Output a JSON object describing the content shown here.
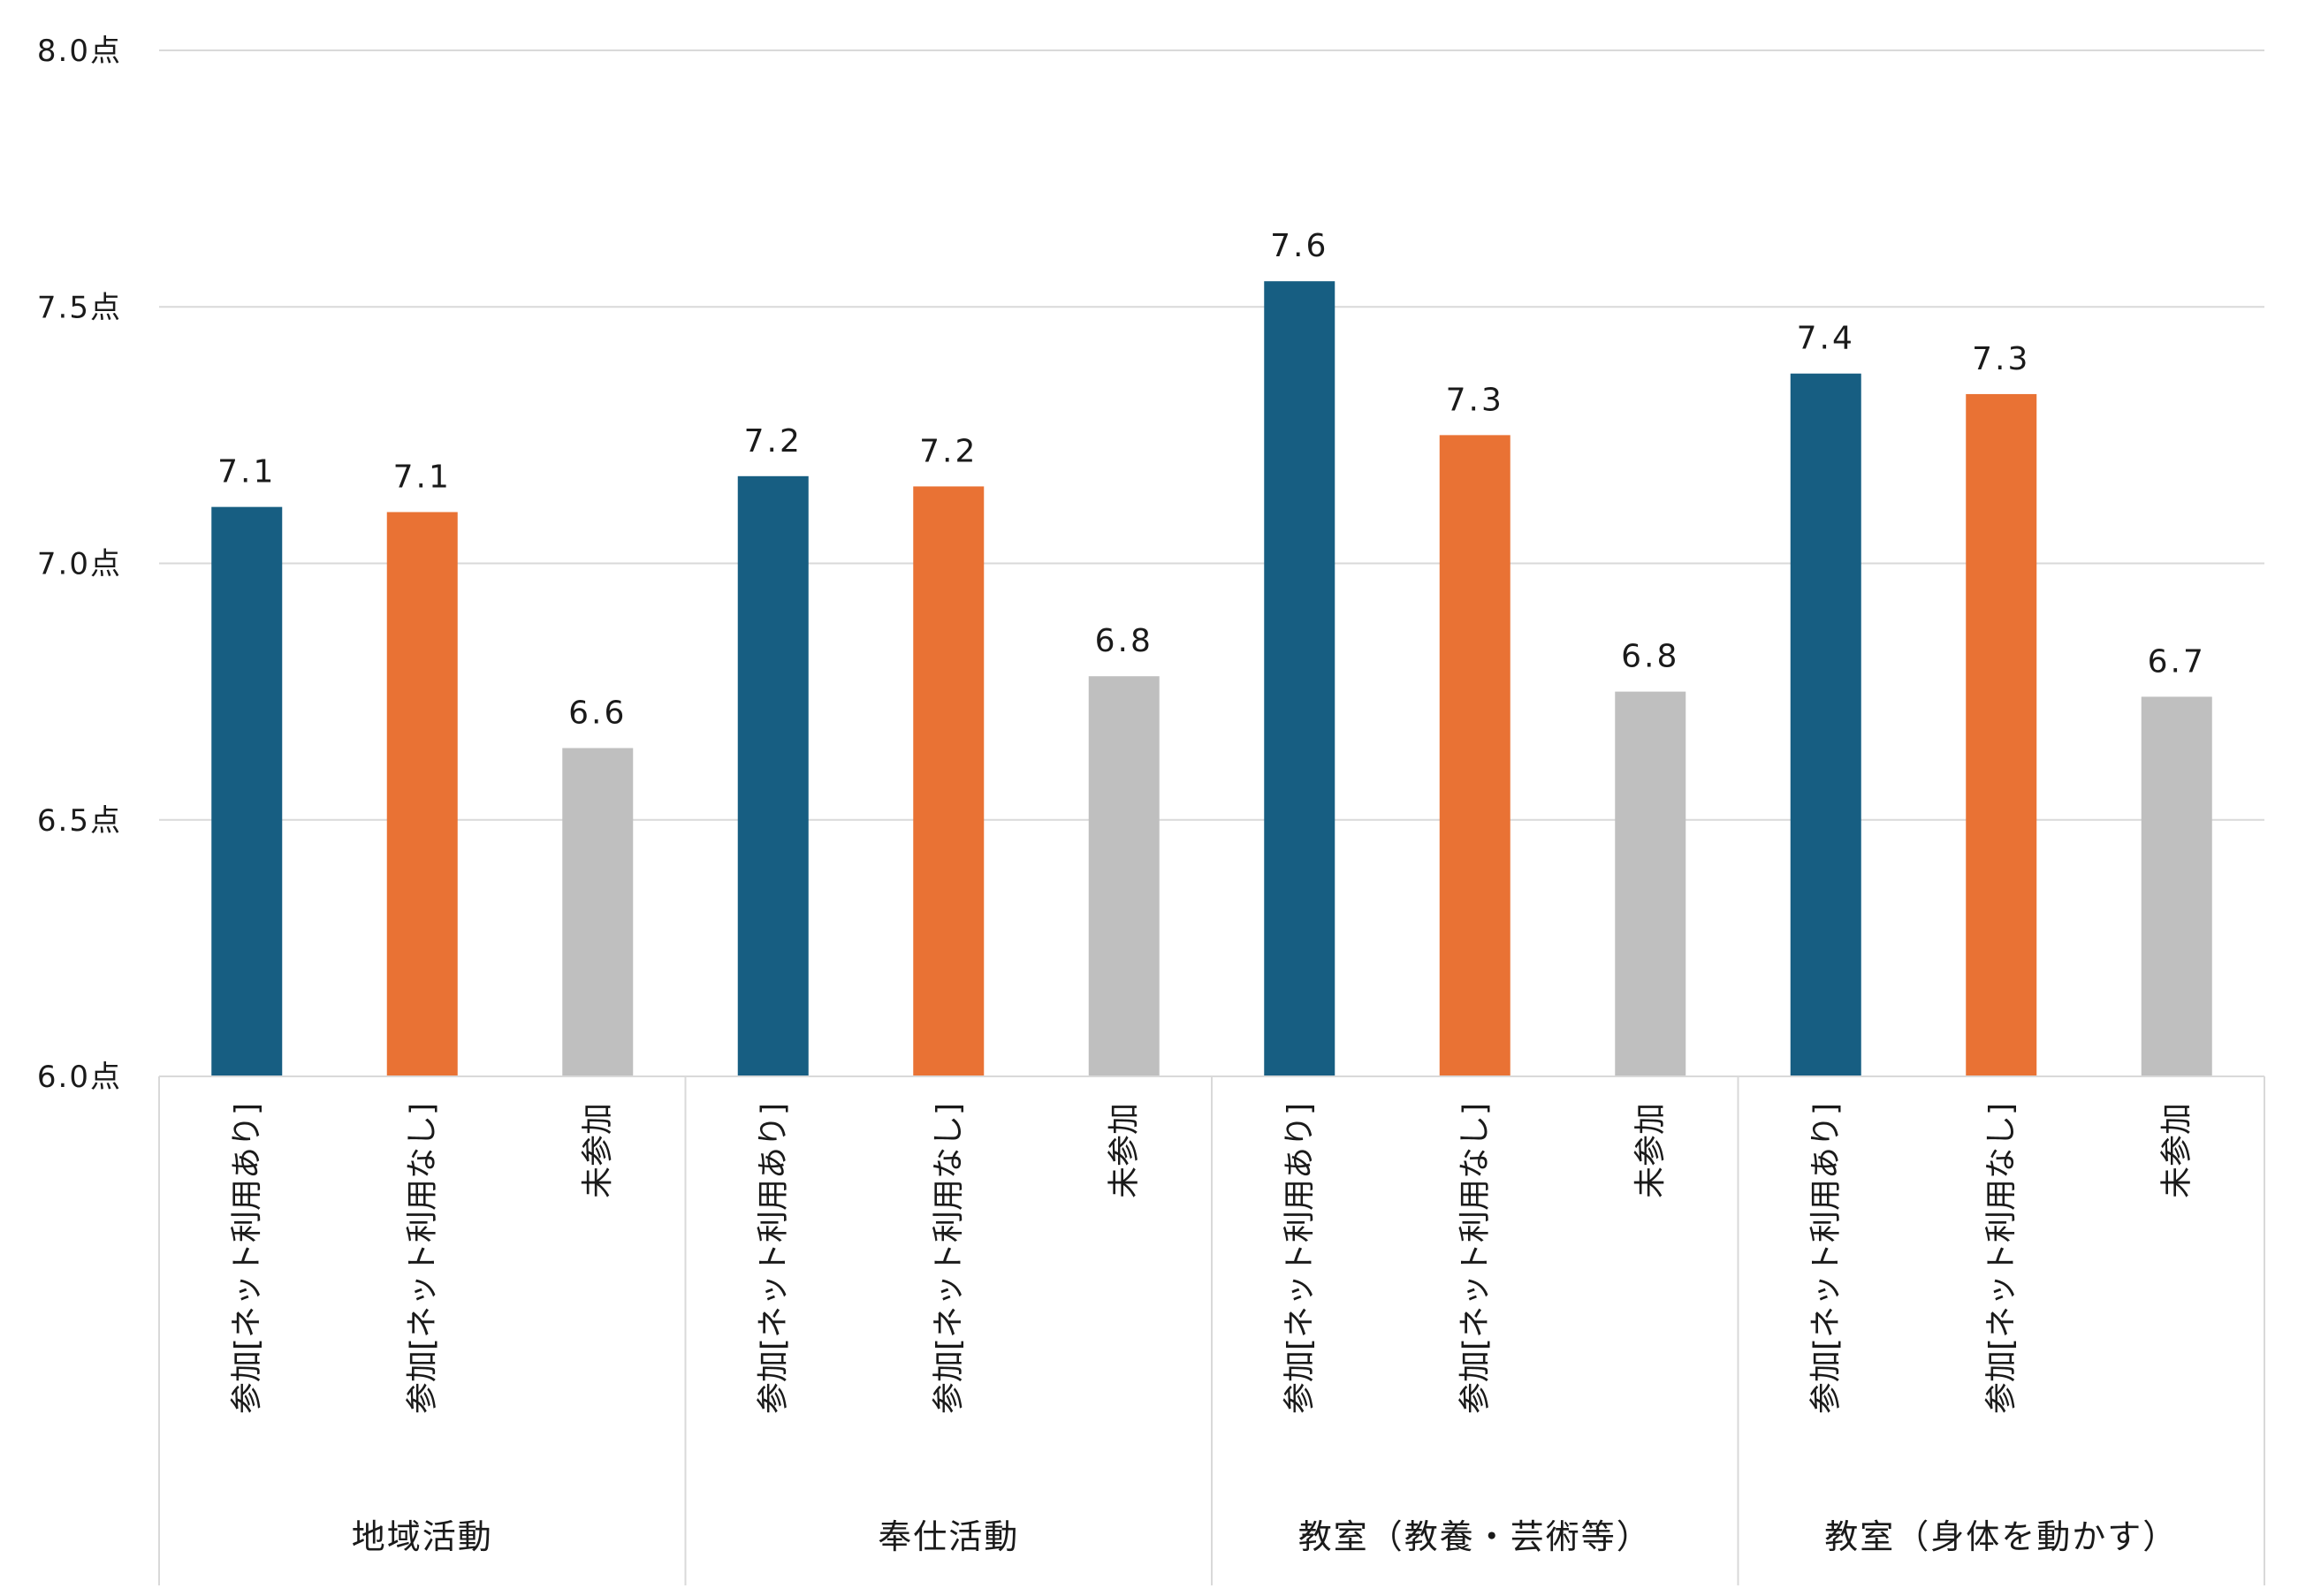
{
  "chart_data": {
    "type": "bar",
    "ylim": [
      6.0,
      8.0
    ],
    "y_ticks": [
      "6.0点",
      "6.5点",
      "7.0点",
      "7.5点",
      "8.0点"
    ],
    "y_tick_values": [
      6.0,
      6.5,
      7.0,
      7.5,
      8.0
    ],
    "grid": true,
    "colors": {
      "net_yes": "#175e82",
      "net_no": "#e97234",
      "none": "#bfbfbf"
    },
    "groups": [
      {
        "name": "地域活動",
        "bars": [
          {
            "label": "参加[ネット利用あり]",
            "value": 7.11,
            "data_label": "7.1",
            "color_key": "net_yes"
          },
          {
            "label": "参加[ネット利用なし]",
            "value": 7.1,
            "data_label": "7.1",
            "color_key": "net_no"
          },
          {
            "label": "未参加",
            "value": 6.64,
            "data_label": "6.6",
            "color_key": "none"
          }
        ]
      },
      {
        "name": "奉仕活動",
        "bars": [
          {
            "label": "参加[ネット利用あり]",
            "value": 7.17,
            "data_label": "7.2",
            "color_key": "net_yes"
          },
          {
            "label": "参加[ネット利用なし]",
            "value": 7.15,
            "data_label": "7.2",
            "color_key": "net_no"
          },
          {
            "label": "未参加",
            "value": 6.78,
            "data_label": "6.8",
            "color_key": "none"
          }
        ]
      },
      {
        "name": "教室（教養・芸術等）",
        "bars": [
          {
            "label": "参加[ネット利用あり]",
            "value": 7.55,
            "data_label": "7.6",
            "color_key": "net_yes"
          },
          {
            "label": "参加[ネット利用なし]",
            "value": 7.25,
            "data_label": "7.3",
            "color_key": "net_no"
          },
          {
            "label": "未参加",
            "value": 6.75,
            "data_label": "6.8",
            "color_key": "none"
          }
        ]
      },
      {
        "name": "教室（身体を動かす）",
        "bars": [
          {
            "label": "参加[ネット利用あり]",
            "value": 7.37,
            "data_label": "7.4",
            "color_key": "net_yes"
          },
          {
            "label": "参加[ネット利用なし]",
            "value": 7.33,
            "data_label": "7.3",
            "color_key": "net_no"
          },
          {
            "label": "未参加",
            "value": 6.74,
            "data_label": "6.7",
            "color_key": "none"
          }
        ]
      }
    ]
  }
}
